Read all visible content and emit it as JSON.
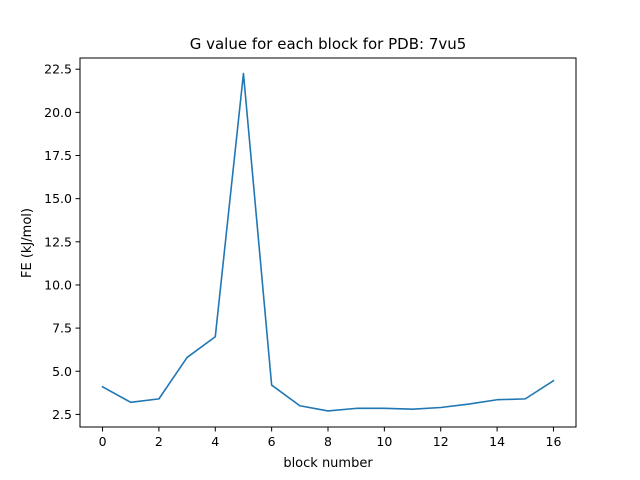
{
  "chart_data": {
    "type": "line",
    "title": "G value for each block for PDB: 7vu5",
    "xlabel": "block number",
    "ylabel": "FE (kJ/mol)",
    "xlim": [
      -0.8,
      16.8
    ],
    "ylim": [
      1.77,
      23.15
    ],
    "xticks": [
      0,
      2,
      4,
      6,
      8,
      10,
      12,
      14,
      16
    ],
    "xtick_labels": [
      "0",
      "2",
      "4",
      "6",
      "8",
      "10",
      "12",
      "14",
      "16"
    ],
    "yticks": [
      2.5,
      5.0,
      7.5,
      10.0,
      12.5,
      15.0,
      17.5,
      20.0,
      22.5
    ],
    "ytick_labels": [
      "2.5",
      "5.0",
      "7.5",
      "10.0",
      "12.5",
      "15.0",
      "17.5",
      "20.0",
      "22.5"
    ],
    "grid": false,
    "series": [
      {
        "color": "#1f77b4",
        "x": [
          0,
          1,
          2,
          3,
          4,
          5,
          6,
          7,
          8,
          9,
          10,
          11,
          12,
          13,
          14,
          15,
          16
        ],
        "y": [
          4.1,
          3.2,
          3.4,
          5.8,
          7.0,
          22.25,
          4.2,
          3.0,
          2.7,
          2.85,
          2.85,
          2.8,
          2.9,
          3.1,
          3.35,
          3.4,
          4.45
        ]
      }
    ]
  }
}
